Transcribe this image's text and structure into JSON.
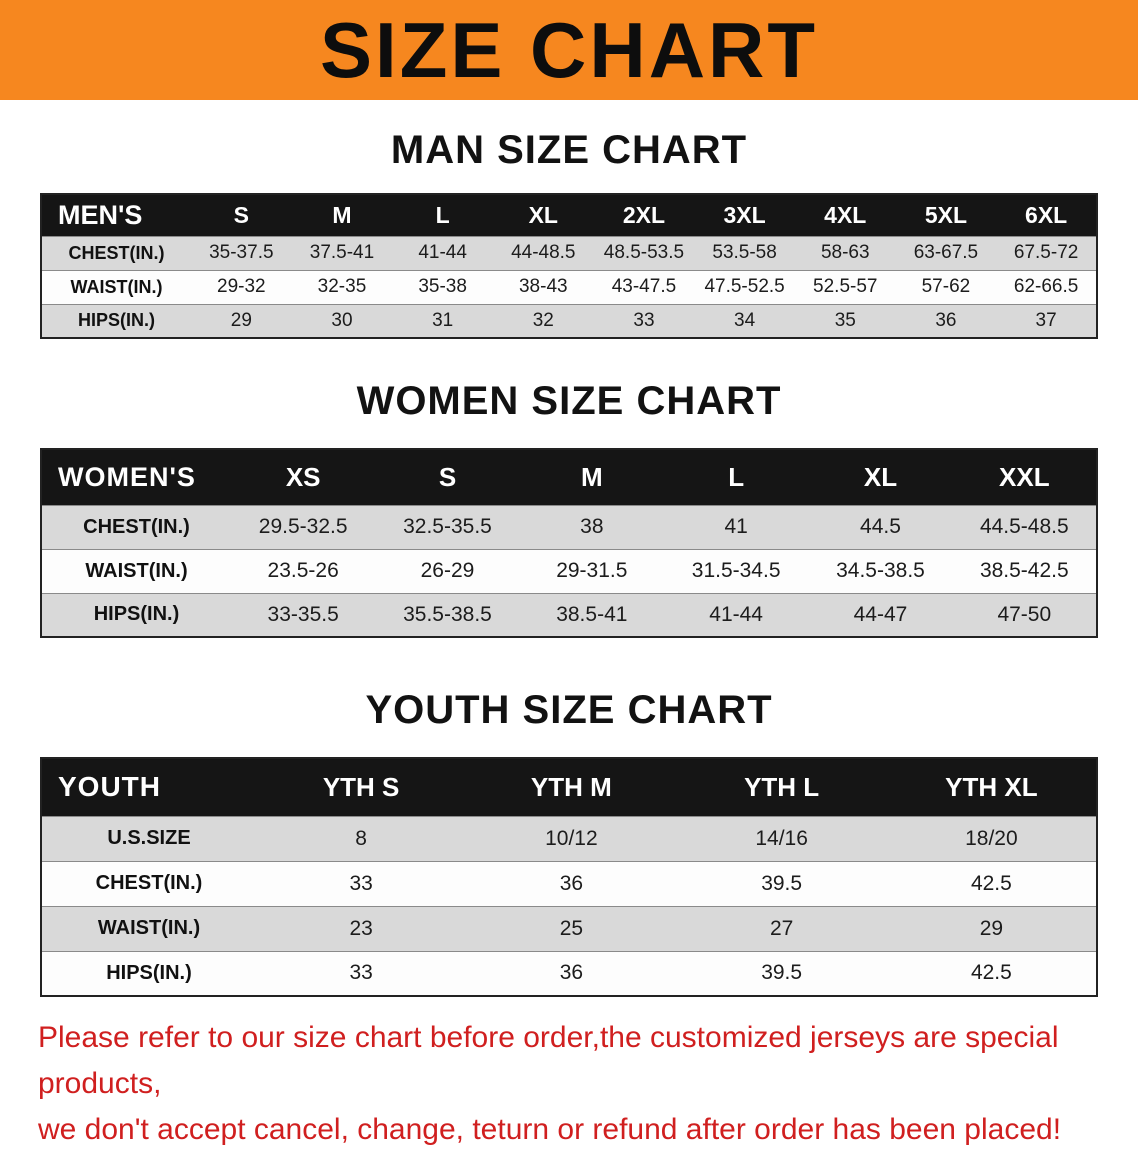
{
  "banner": {
    "title": "SIZE CHART"
  },
  "colors": {
    "banner_bg": "#F6871F",
    "header_bg": "#151515",
    "row_alt": "#D9D9D9",
    "note_red": "#D01F1F"
  },
  "sections": {
    "men": {
      "heading": "MAN SIZE CHART",
      "table": {
        "header": [
          "MEN'S",
          "S",
          "M",
          "L",
          "XL",
          "2XL",
          "3XL",
          "4XL",
          "5XL",
          "6XL"
        ],
        "rows": [
          [
            "CHEST(IN.)",
            "35-37.5",
            "37.5-41",
            "41-44",
            "44-48.5",
            "48.5-53.5",
            "53.5-58",
            "58-63",
            "63-67.5",
            "67.5-72"
          ],
          [
            "WAIST(IN.)",
            "29-32",
            "32-35",
            "35-38",
            "38-43",
            "43-47.5",
            "47.5-52.5",
            "52.5-57",
            "57-62",
            "62-66.5"
          ],
          [
            "HIPS(IN.)",
            "29",
            "30",
            "31",
            "32",
            "33",
            "34",
            "35",
            "36",
            "37"
          ]
        ]
      }
    },
    "women": {
      "heading": "WOMEN SIZE CHART",
      "table": {
        "header": [
          "WOMEN'S",
          "XS",
          "S",
          "M",
          "L",
          "XL",
          "XXL"
        ],
        "rows": [
          [
            "CHEST(IN.)",
            "29.5-32.5",
            "32.5-35.5",
            "38",
            "41",
            "44.5",
            "44.5-48.5"
          ],
          [
            "WAIST(IN.)",
            "23.5-26",
            "26-29",
            "29-31.5",
            "31.5-34.5",
            "34.5-38.5",
            "38.5-42.5"
          ],
          [
            "HIPS(IN.)",
            "33-35.5",
            "35.5-38.5",
            "38.5-41",
            "41-44",
            "44-47",
            "47-50"
          ]
        ]
      }
    },
    "youth": {
      "heading": "YOUTH SIZE CHART",
      "table": {
        "header": [
          "YOUTH",
          "YTH S",
          "YTH M",
          "YTH L",
          "YTH XL"
        ],
        "rows": [
          [
            "U.S.SIZE",
            "8",
            "10/12",
            "14/16",
            "18/20"
          ],
          [
            "CHEST(IN.)",
            "33",
            "36",
            "39.5",
            "42.5"
          ],
          [
            "WAIST(IN.)",
            "23",
            "25",
            "27",
            "29"
          ],
          [
            "HIPS(IN.)",
            "33",
            "36",
            "39.5",
            "42.5"
          ]
        ]
      }
    }
  },
  "note": {
    "line1": "Please refer to our size chart before order,the customized jerseys are special products,",
    "line2": "we don't accept cancel, change, teturn or refund after order has been placed!"
  }
}
